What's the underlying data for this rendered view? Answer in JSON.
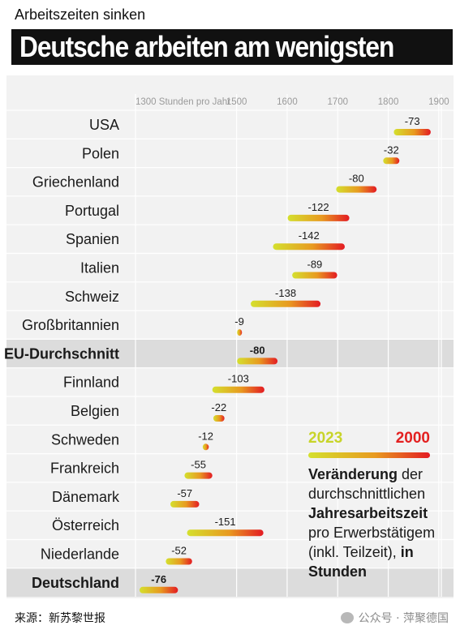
{
  "header": {
    "kicker": "Arbeitszeiten sinken",
    "headline": "Deutsche arbeiten am wenigsten"
  },
  "chart_data": {
    "type": "bar",
    "axis_unit_label": "1300 Stunden pro Jahr",
    "x_ticks": [
      1300,
      1500,
      1600,
      1700,
      1800,
      1900
    ],
    "x_tick_labels": [
      "1300 Stunden pro Jahr",
      "1500",
      "1600",
      "1700",
      "1800",
      "1900"
    ],
    "xlim": [
      1300,
      1905
    ],
    "rows": [
      {
        "country": "USA",
        "y2000": 1884,
        "y2023": 1811,
        "change_label": "-73",
        "bold": false
      },
      {
        "country": "Polen",
        "y2000": 1822,
        "y2023": 1790,
        "change_label": "-32",
        "bold": false
      },
      {
        "country": "Griechenland",
        "y2000": 1777,
        "y2023": 1697,
        "change_label": "-80",
        "bold": false
      },
      {
        "country": "Portugal",
        "y2000": 1723,
        "y2023": 1601,
        "change_label": "-122",
        "bold": false
      },
      {
        "country": "Spanien",
        "y2000": 1714,
        "y2023": 1572,
        "change_label": "-142",
        "bold": false
      },
      {
        "country": "Italien",
        "y2000": 1699,
        "y2023": 1610,
        "change_label": "-89",
        "bold": false
      },
      {
        "country": "Schweiz",
        "y2000": 1666,
        "y2023": 1528,
        "change_label": "-138",
        "bold": false
      },
      {
        "country": "Großbritannien",
        "y2000": 1510,
        "y2023": 1501,
        "change_label": "-9",
        "bold": false
      },
      {
        "country": "EU-Durchschnitt",
        "y2000": 1581,
        "y2023": 1501,
        "change_label": "-80",
        "bold": true
      },
      {
        "country": "Finnland",
        "y2000": 1555,
        "y2023": 1452,
        "change_label": "-103",
        "bold": false
      },
      {
        "country": "Belgien",
        "y2000": 1476,
        "y2023": 1454,
        "change_label": "-22",
        "bold": false
      },
      {
        "country": "Schweden",
        "y2000": 1445,
        "y2023": 1433,
        "change_label": "-12",
        "bold": false
      },
      {
        "country": "Frankreich",
        "y2000": 1452,
        "y2023": 1397,
        "change_label": "-55",
        "bold": false
      },
      {
        "country": "Dänemark",
        "y2000": 1426,
        "y2023": 1369,
        "change_label": "-57",
        "bold": false
      },
      {
        "country": "Österreich",
        "y2000": 1553,
        "y2023": 1402,
        "change_label": "-151",
        "bold": false
      },
      {
        "country": "Niederlande",
        "y2000": 1412,
        "y2023": 1360,
        "change_label": "-52",
        "bold": false
      },
      {
        "country": "Deutschland",
        "y2000": 1384,
        "y2023": 1308,
        "change_label": "-76",
        "bold": true
      }
    ],
    "legend": {
      "from_year": "2023",
      "to_year": "2000",
      "from_color": "#c8d42a",
      "to_color": "#e32020"
    }
  },
  "legend_text": {
    "bold1": "Veränderung",
    "text1": " der durchschnittlichen ",
    "bold2": "Jahresarbeitszeit",
    "text2": " pro Erwerbstätigem (inkl. Teilzeit), ",
    "bold3": "in Stunden"
  },
  "footer": {
    "source": "来源：新苏黎世报",
    "watermark": "公众号 · 萍聚德国"
  },
  "colors": {
    "highlight_row": "#dcdcdc",
    "grid": "#ffffff",
    "bar_start": "#d4e02e",
    "bar_end": "#e31b23"
  }
}
